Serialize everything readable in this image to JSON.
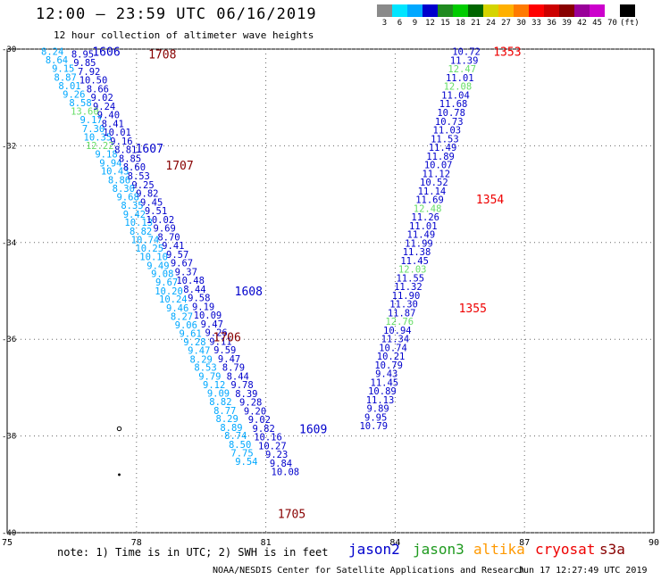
{
  "header": {
    "title": "12:00 – 23:59 UTC 06/16/2019",
    "subtitle": "12 hour collection of altimeter wave heights"
  },
  "colorbar": {
    "labels": [
      "3",
      "6",
      "9",
      "12",
      "15",
      "18",
      "21",
      "24",
      "27",
      "30",
      "33",
      "36",
      "39",
      "42",
      "45",
      "70",
      "(ft)"
    ],
    "colors": [
      "#8a8a8a",
      "#00e5ff",
      "#00a8ff",
      "#0000cc",
      "#1f8a1f",
      "#00cc00",
      "#006600",
      "#d4d400",
      "#ffb000",
      "#ff7a00",
      "#ff0000",
      "#cc0000",
      "#880000",
      "#990099",
      "#cc00cc",
      "#ffffff",
      "#000000"
    ]
  },
  "footer": {
    "note": "note: 1) Time is in UTC; 2) SWH is in feet",
    "satellites": [
      {
        "name": "jason2",
        "color": "#0000cc"
      },
      {
        "name": "jason3",
        "color": "#1f9a1f"
      },
      {
        "name": "altika",
        "color": "#ff9900"
      },
      {
        "name": "cryosat",
        "color": "#ee0000"
      },
      {
        "name": "s3a",
        "color": "#880000"
      }
    ],
    "credit": "NOAA/NESDIS Center for Satellite Applications and Research",
    "stamp": "Jun 17 12:27:49 UTC 2019"
  },
  "chart_data": {
    "type": "scatter",
    "title": "12:00 – 23:59 UTC 06/16/2019",
    "subtitle": "12 hour collection of altimeter wave heights",
    "xlim": [
      75,
      90
    ],
    "ylim": [
      -40,
      -30
    ],
    "x_ticks": [
      75,
      78,
      81,
      84,
      87,
      90
    ],
    "y_ticks": [
      -30,
      -32,
      -34,
      -36,
      -38,
      -40
    ],
    "grid": true,
    "color_scale": {
      "colors": [
        "#00e5ff",
        "#00a8ff",
        "#0000cc",
        "#8ff08f"
      ]
    },
    "tracks": [
      {
        "color": "#00a8ff",
        "points": [
          [
            76.05,
            -30.05,
            "8.24"
          ],
          [
            76.15,
            -30.22,
            "8.64"
          ],
          [
            76.3,
            -30.4,
            "9.15"
          ],
          [
            76.35,
            -30.58,
            "8.87"
          ],
          [
            76.45,
            -30.76,
            "8.01"
          ],
          [
            76.55,
            -30.93,
            "9.26"
          ],
          [
            76.7,
            -31.11,
            "8.58"
          ],
          [
            76.8,
            -31.28,
            "13.60"
          ],
          [
            76.95,
            -31.46,
            "9.17"
          ],
          [
            77.0,
            -31.64,
            "7.30"
          ],
          [
            77.1,
            -31.82,
            "10.35"
          ],
          [
            77.15,
            -31.99,
            "12.22"
          ],
          [
            77.3,
            -32.17,
            "9.18"
          ],
          [
            77.4,
            -32.35,
            "9.94"
          ],
          [
            77.5,
            -32.52,
            "10.43"
          ],
          [
            77.6,
            -32.7,
            "8.86"
          ],
          [
            77.7,
            -32.88,
            "8.30"
          ],
          [
            77.8,
            -33.05,
            "9.68"
          ],
          [
            77.9,
            -33.23,
            "8.35"
          ],
          [
            77.95,
            -33.41,
            "9.42"
          ],
          [
            78.05,
            -33.58,
            "10.13"
          ],
          [
            78.1,
            -33.76,
            "8.82"
          ],
          [
            78.2,
            -33.94,
            "10.74"
          ],
          [
            78.3,
            -34.11,
            "10.25"
          ],
          [
            78.4,
            -34.29,
            "10.10"
          ],
          [
            78.5,
            -34.47,
            "9.49"
          ],
          [
            78.6,
            -34.64,
            "9.08"
          ],
          [
            78.7,
            -34.82,
            "9.67"
          ],
          [
            78.75,
            -35.0,
            "10.20"
          ],
          [
            78.85,
            -35.17,
            "10.24"
          ],
          [
            78.95,
            -35.35,
            "9.46"
          ],
          [
            79.05,
            -35.53,
            "8.27"
          ],
          [
            79.15,
            -35.7,
            "9.06"
          ],
          [
            79.25,
            -35.88,
            "9.61"
          ],
          [
            79.35,
            -36.05,
            "9.28"
          ],
          [
            79.45,
            -36.23,
            "9.47"
          ],
          [
            79.5,
            -36.41,
            "8.29"
          ],
          [
            79.6,
            -36.58,
            "8.53"
          ],
          [
            79.7,
            -36.76,
            "9.79"
          ],
          [
            79.8,
            -36.94,
            "9.12"
          ],
          [
            79.9,
            -37.11,
            "9.09"
          ],
          [
            79.95,
            -37.29,
            "8.82"
          ],
          [
            80.05,
            -37.47,
            "8.77"
          ],
          [
            80.1,
            -37.64,
            "8.29"
          ],
          [
            80.2,
            -37.82,
            "8.89"
          ],
          [
            80.3,
            -37.99,
            "8.74"
          ],
          [
            80.4,
            -38.17,
            "8.50"
          ],
          [
            80.45,
            -38.35,
            "7.75"
          ],
          [
            80.55,
            -38.52,
            "9.54"
          ]
        ]
      },
      {
        "color": "#0000cc",
        "points": [
          [
            76.75,
            -30.1,
            "8.95"
          ],
          [
            76.8,
            -30.28,
            "9.85"
          ],
          [
            76.9,
            -30.46,
            "7.92"
          ],
          [
            77.0,
            -30.64,
            "10.50"
          ],
          [
            77.1,
            -30.82,
            "8.66"
          ],
          [
            77.2,
            -31.0,
            "9.02"
          ],
          [
            77.25,
            -31.18,
            "9.24"
          ],
          [
            77.35,
            -31.36,
            "9.40"
          ],
          [
            77.45,
            -31.54,
            "8.41"
          ],
          [
            77.55,
            -31.72,
            "10.01"
          ],
          [
            77.65,
            -31.9,
            "9.16"
          ],
          [
            77.75,
            -32.08,
            "8.81"
          ],
          [
            77.85,
            -32.26,
            "8.85"
          ],
          [
            77.95,
            -32.44,
            "8.60"
          ],
          [
            78.05,
            -32.62,
            "8.53"
          ],
          [
            78.15,
            -32.8,
            "9.25"
          ],
          [
            78.25,
            -32.98,
            "9.82"
          ],
          [
            78.35,
            -33.16,
            "9.45"
          ],
          [
            78.45,
            -33.34,
            "9.51"
          ],
          [
            78.55,
            -33.52,
            "10.02"
          ],
          [
            78.65,
            -33.7,
            "9.69"
          ],
          [
            78.75,
            -33.88,
            "8.70"
          ],
          [
            78.85,
            -34.06,
            "9.41"
          ],
          [
            78.95,
            -34.24,
            "9.57"
          ],
          [
            79.05,
            -34.42,
            "9.67"
          ],
          [
            79.15,
            -34.6,
            "9.37"
          ],
          [
            79.25,
            -34.78,
            "10.48"
          ],
          [
            79.35,
            -34.96,
            "8.44"
          ],
          [
            79.45,
            -35.14,
            "9.58"
          ],
          [
            79.55,
            -35.32,
            "9.19"
          ],
          [
            79.65,
            -35.5,
            "10.09"
          ],
          [
            79.75,
            -35.68,
            "9.47"
          ],
          [
            79.85,
            -35.86,
            "9.26"
          ],
          [
            79.95,
            -36.04,
            "9.11"
          ],
          [
            80.05,
            -36.22,
            "9.59"
          ],
          [
            80.15,
            -36.4,
            "9.47"
          ],
          [
            80.25,
            -36.58,
            "8.79"
          ],
          [
            80.35,
            -36.76,
            "8.44"
          ],
          [
            80.45,
            -36.94,
            "9.78"
          ],
          [
            80.55,
            -37.12,
            "8.39"
          ],
          [
            80.65,
            -37.3,
            "9.28"
          ],
          [
            80.75,
            -37.48,
            "9.20"
          ],
          [
            80.85,
            -37.66,
            "9.02"
          ],
          [
            80.95,
            -37.84,
            "9.82"
          ],
          [
            81.05,
            -38.02,
            "10.16"
          ],
          [
            81.15,
            -38.2,
            "10.27"
          ],
          [
            81.25,
            -38.38,
            "9.23"
          ],
          [
            81.35,
            -38.56,
            "9.84"
          ],
          [
            81.45,
            -38.74,
            "10.08"
          ]
        ]
      },
      {
        "color": "#0000cc",
        "points": [
          [
            85.65,
            -30.05,
            "10.72"
          ],
          [
            85.6,
            -30.23,
            "11.39"
          ],
          [
            85.55,
            -30.41,
            "12.47"
          ],
          [
            85.5,
            -30.59,
            "11.01"
          ],
          [
            85.45,
            -30.77,
            "12.08"
          ],
          [
            85.4,
            -30.95,
            "11.04"
          ],
          [
            85.35,
            -31.13,
            "11.68"
          ],
          [
            85.3,
            -31.31,
            "10.78"
          ],
          [
            85.25,
            -31.49,
            "10.73"
          ],
          [
            85.2,
            -31.67,
            "11.03"
          ],
          [
            85.15,
            -31.85,
            "11.53"
          ],
          [
            85.1,
            -32.03,
            "11.49"
          ],
          [
            85.05,
            -32.21,
            "11.89"
          ],
          [
            85.0,
            -32.39,
            "10.07"
          ],
          [
            84.95,
            -32.57,
            "11.12"
          ],
          [
            84.9,
            -32.75,
            "10.52"
          ],
          [
            84.85,
            -32.93,
            "11.14"
          ],
          [
            84.8,
            -33.11,
            "11.69"
          ],
          [
            84.75,
            -33.29,
            "12.48"
          ],
          [
            84.7,
            -33.47,
            "11.26"
          ],
          [
            84.65,
            -33.65,
            "11.01"
          ],
          [
            84.6,
            -33.83,
            "11.49"
          ],
          [
            84.55,
            -34.01,
            "11.99"
          ],
          [
            84.5,
            -34.19,
            "11.38"
          ],
          [
            84.45,
            -34.37,
            "11.45"
          ],
          [
            84.4,
            -34.55,
            "12.03"
          ],
          [
            84.35,
            -34.73,
            "11.55"
          ],
          [
            84.3,
            -34.91,
            "11.32"
          ],
          [
            84.25,
            -35.09,
            "11.90"
          ],
          [
            84.2,
            -35.27,
            "11.30"
          ],
          [
            84.15,
            -35.45,
            "11.87"
          ],
          [
            84.1,
            -35.63,
            "12.76"
          ],
          [
            84.05,
            -35.81,
            "10.94"
          ],
          [
            84.0,
            -35.99,
            "11.34"
          ],
          [
            83.95,
            -36.17,
            "10.74"
          ],
          [
            83.9,
            -36.35,
            "10.21"
          ],
          [
            83.85,
            -36.53,
            "10.79"
          ],
          [
            83.8,
            -36.71,
            "9.43"
          ],
          [
            83.75,
            -36.89,
            "11.45"
          ],
          [
            83.7,
            -37.07,
            "10.89"
          ],
          [
            83.65,
            -37.25,
            "11.13"
          ],
          [
            83.6,
            -37.43,
            "9.89"
          ],
          [
            83.55,
            -37.61,
            "9.95"
          ],
          [
            83.5,
            -37.79,
            "10.79"
          ]
        ]
      }
    ],
    "time_labels": [
      {
        "label": "1606",
        "x": 77.3,
        "y": -30.05,
        "color": "#0000cc"
      },
      {
        "label": "1708",
        "x": 78.6,
        "y": -30.1,
        "color": "#880000"
      },
      {
        "label": "1607",
        "x": 78.3,
        "y": -32.05,
        "color": "#0000cc"
      },
      {
        "label": "1707",
        "x": 79.0,
        "y": -32.4,
        "color": "#880000"
      },
      {
        "label": "1608",
        "x": 80.6,
        "y": -35.0,
        "color": "#0000cc"
      },
      {
        "label": "1706",
        "x": 80.1,
        "y": -35.95,
        "color": "#880000"
      },
      {
        "label": "1609",
        "x": 82.1,
        "y": -37.85,
        "color": "#0000cc"
      },
      {
        "label": "1705",
        "x": 81.6,
        "y": -39.6,
        "color": "#880000"
      },
      {
        "label": "1353",
        "x": 86.6,
        "y": -30.05,
        "color": "#ee0000"
      },
      {
        "label": "1354",
        "x": 86.2,
        "y": -33.1,
        "color": "#ee0000"
      },
      {
        "label": "1355",
        "x": 85.8,
        "y": -35.35,
        "color": "#ee0000"
      }
    ],
    "markers": [
      {
        "x": 77.6,
        "y": -37.85,
        "symbol": "o"
      },
      {
        "x": 77.6,
        "y": -38.8,
        "symbol": "dot"
      }
    ]
  }
}
